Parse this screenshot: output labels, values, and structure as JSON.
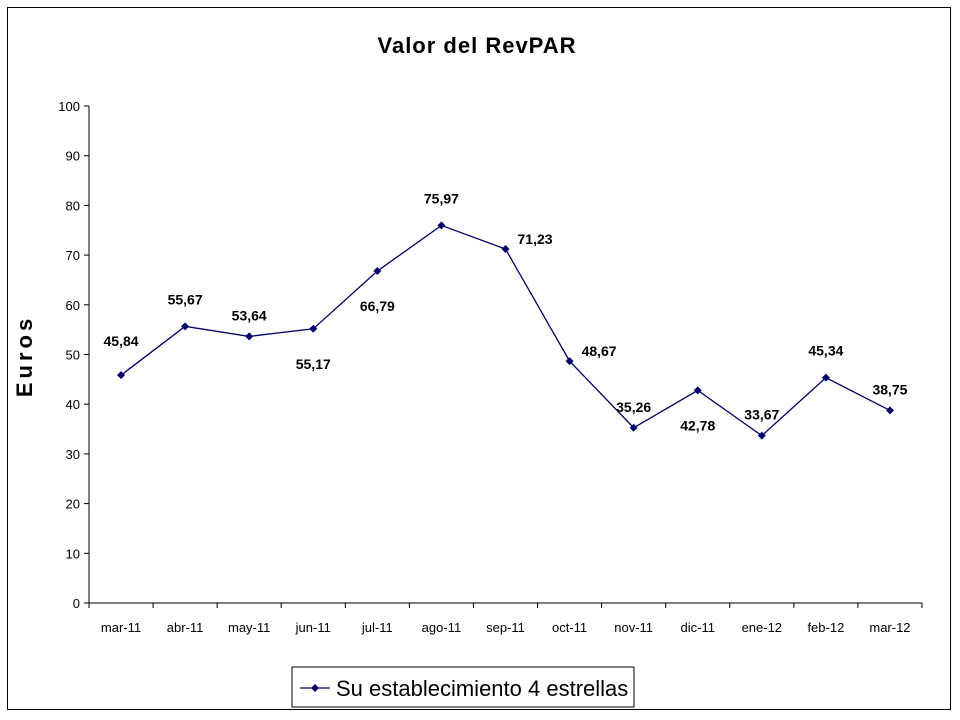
{
  "chart_data": {
    "type": "line",
    "title": "Valor del RevPAR",
    "xlabel": "",
    "ylabel": "Euros",
    "ylim": [
      0,
      100
    ],
    "yticks": [
      0,
      10,
      20,
      30,
      40,
      50,
      60,
      70,
      80,
      90,
      100
    ],
    "grid": false,
    "legend": "bottom",
    "categories": [
      "mar-11",
      "abr-11",
      "may-11",
      "jun-11",
      "jul-11",
      "ago-11",
      "sep-11",
      "oct-11",
      "nov-11",
      "dic-11",
      "ene-12",
      "feb-12",
      "mar-12"
    ],
    "series": [
      {
        "name": "Su establecimiento 4 estrellas",
        "color": "#000066",
        "values": [
          45.84,
          55.67,
          53.64,
          55.17,
          66.79,
          75.97,
          71.23,
          48.67,
          35.26,
          42.78,
          33.67,
          45.34,
          38.75
        ],
        "labels": [
          "45,84",
          "55,67",
          "53,64",
          "55,17",
          "66,79",
          "75,97",
          "71,23",
          "48,67",
          "35,26",
          "42,78",
          "33,67",
          "45,34",
          "38,75"
        ]
      }
    ]
  }
}
